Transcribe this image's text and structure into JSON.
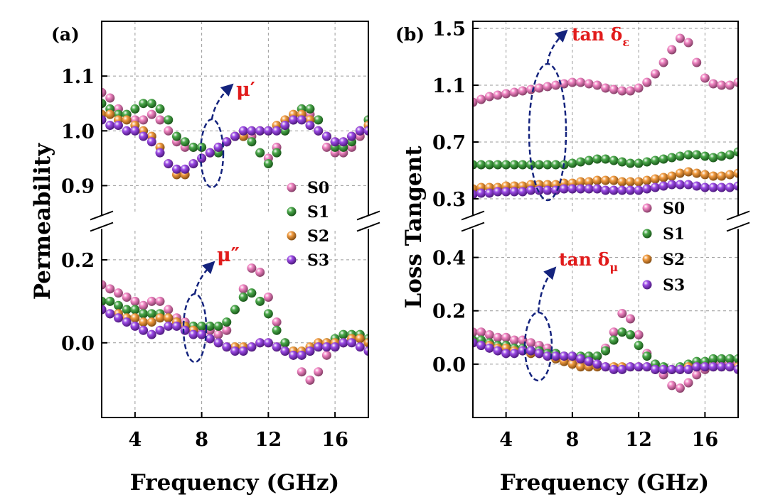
{
  "colors": {
    "S0": "#ee6fb8",
    "S1": "#2b9a2b",
    "S2": "#f08a1f",
    "S3": "#8a2be2",
    "annotation": "#e11b1b",
    "arrow": "#14237d",
    "grid": "#9a9a9a"
  },
  "chart_data": [
    {
      "type": "scatter",
      "panel_label": "(a)",
      "ylabel": "Permeability",
      "xlabel": "Frequency (GHz)",
      "xlim": [
        2,
        18
      ],
      "x_ticks": [
        4,
        8,
        12,
        16
      ],
      "upper": {
        "ylim": [
          0.85,
          1.2
        ],
        "y_ticks": [
          0.9,
          1.0,
          1.1
        ],
        "y_tick_labels": [
          "0.9",
          "1.0",
          "1.1"
        ],
        "annotation": "μ′"
      },
      "lower": {
        "ylim": [
          -0.18,
          0.27
        ],
        "y_ticks": [
          0.0,
          0.2
        ],
        "y_tick_labels": [
          "0.0",
          "0.2"
        ],
        "annotation": "μ″"
      },
      "legend": [
        "S0",
        "S1",
        "S2",
        "S3"
      ],
      "legend_position": "right of center",
      "x": [
        2.0,
        2.5,
        3.0,
        3.5,
        4.0,
        4.5,
        5.0,
        5.5,
        6.0,
        6.5,
        7.0,
        7.5,
        8.0,
        8.5,
        9.0,
        9.5,
        10.0,
        10.5,
        11.0,
        11.5,
        12.0,
        12.5,
        13.0,
        13.5,
        14.0,
        14.5,
        15.0,
        15.5,
        16.0,
        16.5,
        17.0,
        17.5,
        18.0
      ],
      "series": [
        {
          "name": "S0",
          "upper": [
            1.07,
            1.06,
            1.04,
            1.03,
            1.02,
            1.02,
            1.03,
            1.02,
            1.0,
            0.98,
            0.97,
            0.97,
            0.97,
            0.96,
            0.97,
            0.98,
            0.99,
            0.99,
            0.99,
            0.96,
            0.95,
            0.97,
            1.0,
            1.02,
            1.04,
            1.03,
            1.0,
            0.97,
            0.96,
            0.96,
            0.97,
            0.99,
            1.02
          ],
          "lower": [
            0.14,
            0.13,
            0.12,
            0.11,
            0.1,
            0.09,
            0.1,
            0.1,
            0.08,
            0.06,
            0.05,
            0.04,
            0.03,
            0.03,
            0.02,
            0.03,
            0.08,
            0.13,
            0.18,
            0.17,
            0.11,
            0.05,
            0.0,
            -0.03,
            -0.07,
            -0.09,
            -0.07,
            -0.03,
            -0.01,
            0.0,
            0.01,
            0.01,
            0.0
          ]
        },
        {
          "name": "S1",
          "upper": [
            1.05,
            1.04,
            1.03,
            1.03,
            1.04,
            1.05,
            1.05,
            1.04,
            1.02,
            0.99,
            0.98,
            0.97,
            0.97,
            0.96,
            0.96,
            0.98,
            0.99,
            0.99,
            0.98,
            0.96,
            0.94,
            0.96,
            1.0,
            1.02,
            1.04,
            1.04,
            1.02,
            0.99,
            0.97,
            0.97,
            0.98,
            1.0,
            1.02
          ],
          "lower": [
            0.1,
            0.1,
            0.09,
            0.08,
            0.08,
            0.07,
            0.07,
            0.07,
            0.06,
            0.05,
            0.04,
            0.04,
            0.04,
            0.04,
            0.04,
            0.05,
            0.08,
            0.11,
            0.12,
            0.1,
            0.07,
            0.03,
            0.0,
            -0.02,
            -0.03,
            -0.02,
            -0.01,
            0.0,
            0.01,
            0.02,
            0.02,
            0.02,
            0.01
          ]
        },
        {
          "name": "S2",
          "upper": [
            1.03,
            1.03,
            1.02,
            1.02,
            1.01,
            1.0,
            0.99,
            0.97,
            0.94,
            0.92,
            0.92,
            0.94,
            0.95,
            0.96,
            0.97,
            0.98,
            0.99,
            0.99,
            1.0,
            1.0,
            1.0,
            1.01,
            1.02,
            1.03,
            1.03,
            1.02,
            1.0,
            0.99,
            0.98,
            0.98,
            0.99,
            1.0,
            1.01
          ],
          "lower": [
            0.08,
            0.07,
            0.07,
            0.06,
            0.06,
            0.05,
            0.05,
            0.06,
            0.06,
            0.05,
            0.04,
            0.03,
            0.02,
            0.01,
            0.0,
            -0.01,
            -0.01,
            -0.01,
            -0.01,
            0.0,
            0.0,
            -0.01,
            -0.02,
            -0.02,
            -0.02,
            -0.01,
            0.0,
            0.0,
            0.0,
            0.0,
            0.01,
            0.01,
            0.0
          ]
        },
        {
          "name": "S3",
          "upper": [
            1.02,
            1.01,
            1.01,
            1.0,
            1.0,
            0.99,
            0.98,
            0.96,
            0.94,
            0.93,
            0.93,
            0.94,
            0.95,
            0.96,
            0.97,
            0.98,
            0.99,
            1.0,
            1.0,
            1.0,
            1.0,
            1.0,
            1.01,
            1.02,
            1.02,
            1.01,
            1.0,
            0.99,
            0.98,
            0.98,
            0.99,
            1.0,
            1.0
          ],
          "lower": [
            0.08,
            0.07,
            0.06,
            0.05,
            0.04,
            0.03,
            0.02,
            0.03,
            0.04,
            0.04,
            0.03,
            0.02,
            0.02,
            0.01,
            0.0,
            -0.01,
            -0.02,
            -0.02,
            -0.01,
            0.0,
            0.0,
            -0.01,
            -0.02,
            -0.03,
            -0.03,
            -0.02,
            -0.01,
            -0.01,
            -0.01,
            0.0,
            0.0,
            -0.01,
            -0.02
          ]
        }
      ]
    },
    {
      "type": "scatter",
      "panel_label": "(b)",
      "ylabel": "Loss Tangent",
      "xlabel": "Frequency (GHz)",
      "xlim": [
        2,
        18
      ],
      "x_ticks": [
        4,
        8,
        12,
        16
      ],
      "upper": {
        "ylim": [
          0.2,
          1.55
        ],
        "y_ticks": [
          0.3,
          0.7,
          1.1,
          1.5
        ],
        "y_tick_labels": [
          "0.3",
          "0.7",
          "1.1",
          "1.5"
        ],
        "annotation": "tan δε"
      },
      "lower": {
        "ylim": [
          -0.2,
          0.5
        ],
        "y_ticks": [
          0.0,
          0.2,
          0.4
        ],
        "y_tick_labels": [
          "0.0",
          "0.2",
          "0.4"
        ],
        "annotation": "tan δμ"
      },
      "legend": [
        "S0",
        "S1",
        "S2",
        "S3"
      ],
      "legend_position": "right",
      "x": [
        2.0,
        2.5,
        3.0,
        3.5,
        4.0,
        4.5,
        5.0,
        5.5,
        6.0,
        6.5,
        7.0,
        7.5,
        8.0,
        8.5,
        9.0,
        9.5,
        10.0,
        10.5,
        11.0,
        11.5,
        12.0,
        12.5,
        13.0,
        13.5,
        14.0,
        14.5,
        15.0,
        15.5,
        16.0,
        16.5,
        17.0,
        17.5,
        18.0
      ],
      "series": [
        {
          "name": "S0",
          "upper": [
            0.98,
            1.0,
            1.02,
            1.03,
            1.04,
            1.05,
            1.06,
            1.07,
            1.08,
            1.09,
            1.1,
            1.11,
            1.12,
            1.12,
            1.11,
            1.1,
            1.08,
            1.07,
            1.06,
            1.06,
            1.08,
            1.12,
            1.18,
            1.26,
            1.35,
            1.43,
            1.4,
            1.26,
            1.15,
            1.11,
            1.1,
            1.1,
            1.12
          ],
          "lower": [
            0.12,
            0.12,
            0.11,
            0.1,
            0.1,
            0.09,
            0.09,
            0.08,
            0.07,
            0.06,
            0.04,
            0.03,
            0.02,
            0.01,
            0.02,
            0.03,
            0.06,
            0.12,
            0.19,
            0.17,
            0.11,
            0.04,
            0.0,
            -0.04,
            -0.08,
            -0.09,
            -0.07,
            -0.04,
            -0.02,
            0.0,
            0.0,
            0.0,
            0.0
          ]
        },
        {
          "name": "S1",
          "upper": [
            0.54,
            0.54,
            0.54,
            0.54,
            0.54,
            0.54,
            0.54,
            0.54,
            0.54,
            0.54,
            0.54,
            0.54,
            0.55,
            0.56,
            0.57,
            0.58,
            0.58,
            0.57,
            0.56,
            0.55,
            0.55,
            0.56,
            0.57,
            0.58,
            0.59,
            0.6,
            0.61,
            0.61,
            0.6,
            0.59,
            0.6,
            0.61,
            0.63
          ],
          "lower": [
            0.09,
            0.09,
            0.08,
            0.07,
            0.07,
            0.06,
            0.06,
            0.05,
            0.05,
            0.04,
            0.04,
            0.03,
            0.03,
            0.03,
            0.03,
            0.03,
            0.05,
            0.09,
            0.12,
            0.11,
            0.07,
            0.03,
            0.0,
            -0.01,
            -0.02,
            -0.01,
            0.0,
            0.01,
            0.01,
            0.02,
            0.02,
            0.02,
            0.02
          ]
        },
        {
          "name": "S2",
          "upper": [
            0.37,
            0.38,
            0.38,
            0.38,
            0.39,
            0.39,
            0.39,
            0.4,
            0.4,
            0.4,
            0.4,
            0.41,
            0.41,
            0.42,
            0.42,
            0.43,
            0.43,
            0.43,
            0.42,
            0.42,
            0.42,
            0.43,
            0.44,
            0.45,
            0.46,
            0.48,
            0.49,
            0.48,
            0.47,
            0.46,
            0.46,
            0.47,
            0.48
          ],
          "lower": [
            0.08,
            0.07,
            0.07,
            0.06,
            0.06,
            0.05,
            0.05,
            0.04,
            0.04,
            0.03,
            0.02,
            0.01,
            0.0,
            -0.01,
            -0.01,
            -0.01,
            -0.01,
            -0.01,
            -0.01,
            -0.01,
            -0.01,
            -0.01,
            -0.02,
            -0.02,
            -0.02,
            -0.02,
            -0.01,
            -0.01,
            -0.01,
            -0.01,
            -0.01,
            -0.01,
            -0.01
          ]
        },
        {
          "name": "S3",
          "upper": [
            0.33,
            0.34,
            0.34,
            0.35,
            0.35,
            0.35,
            0.35,
            0.36,
            0.36,
            0.36,
            0.36,
            0.37,
            0.37,
            0.37,
            0.37,
            0.37,
            0.36,
            0.36,
            0.36,
            0.36,
            0.36,
            0.37,
            0.38,
            0.39,
            0.4,
            0.4,
            0.4,
            0.39,
            0.38,
            0.38,
            0.38,
            0.38,
            0.39
          ],
          "lower": [
            0.08,
            0.07,
            0.06,
            0.05,
            0.04,
            0.04,
            0.05,
            0.05,
            0.04,
            0.03,
            0.03,
            0.03,
            0.03,
            0.02,
            0.01,
            0.0,
            -0.01,
            -0.02,
            -0.02,
            -0.01,
            -0.01,
            -0.01,
            -0.02,
            -0.02,
            -0.02,
            -0.02,
            -0.02,
            -0.01,
            -0.01,
            -0.01,
            -0.01,
            -0.01,
            -0.02
          ]
        }
      ]
    }
  ]
}
